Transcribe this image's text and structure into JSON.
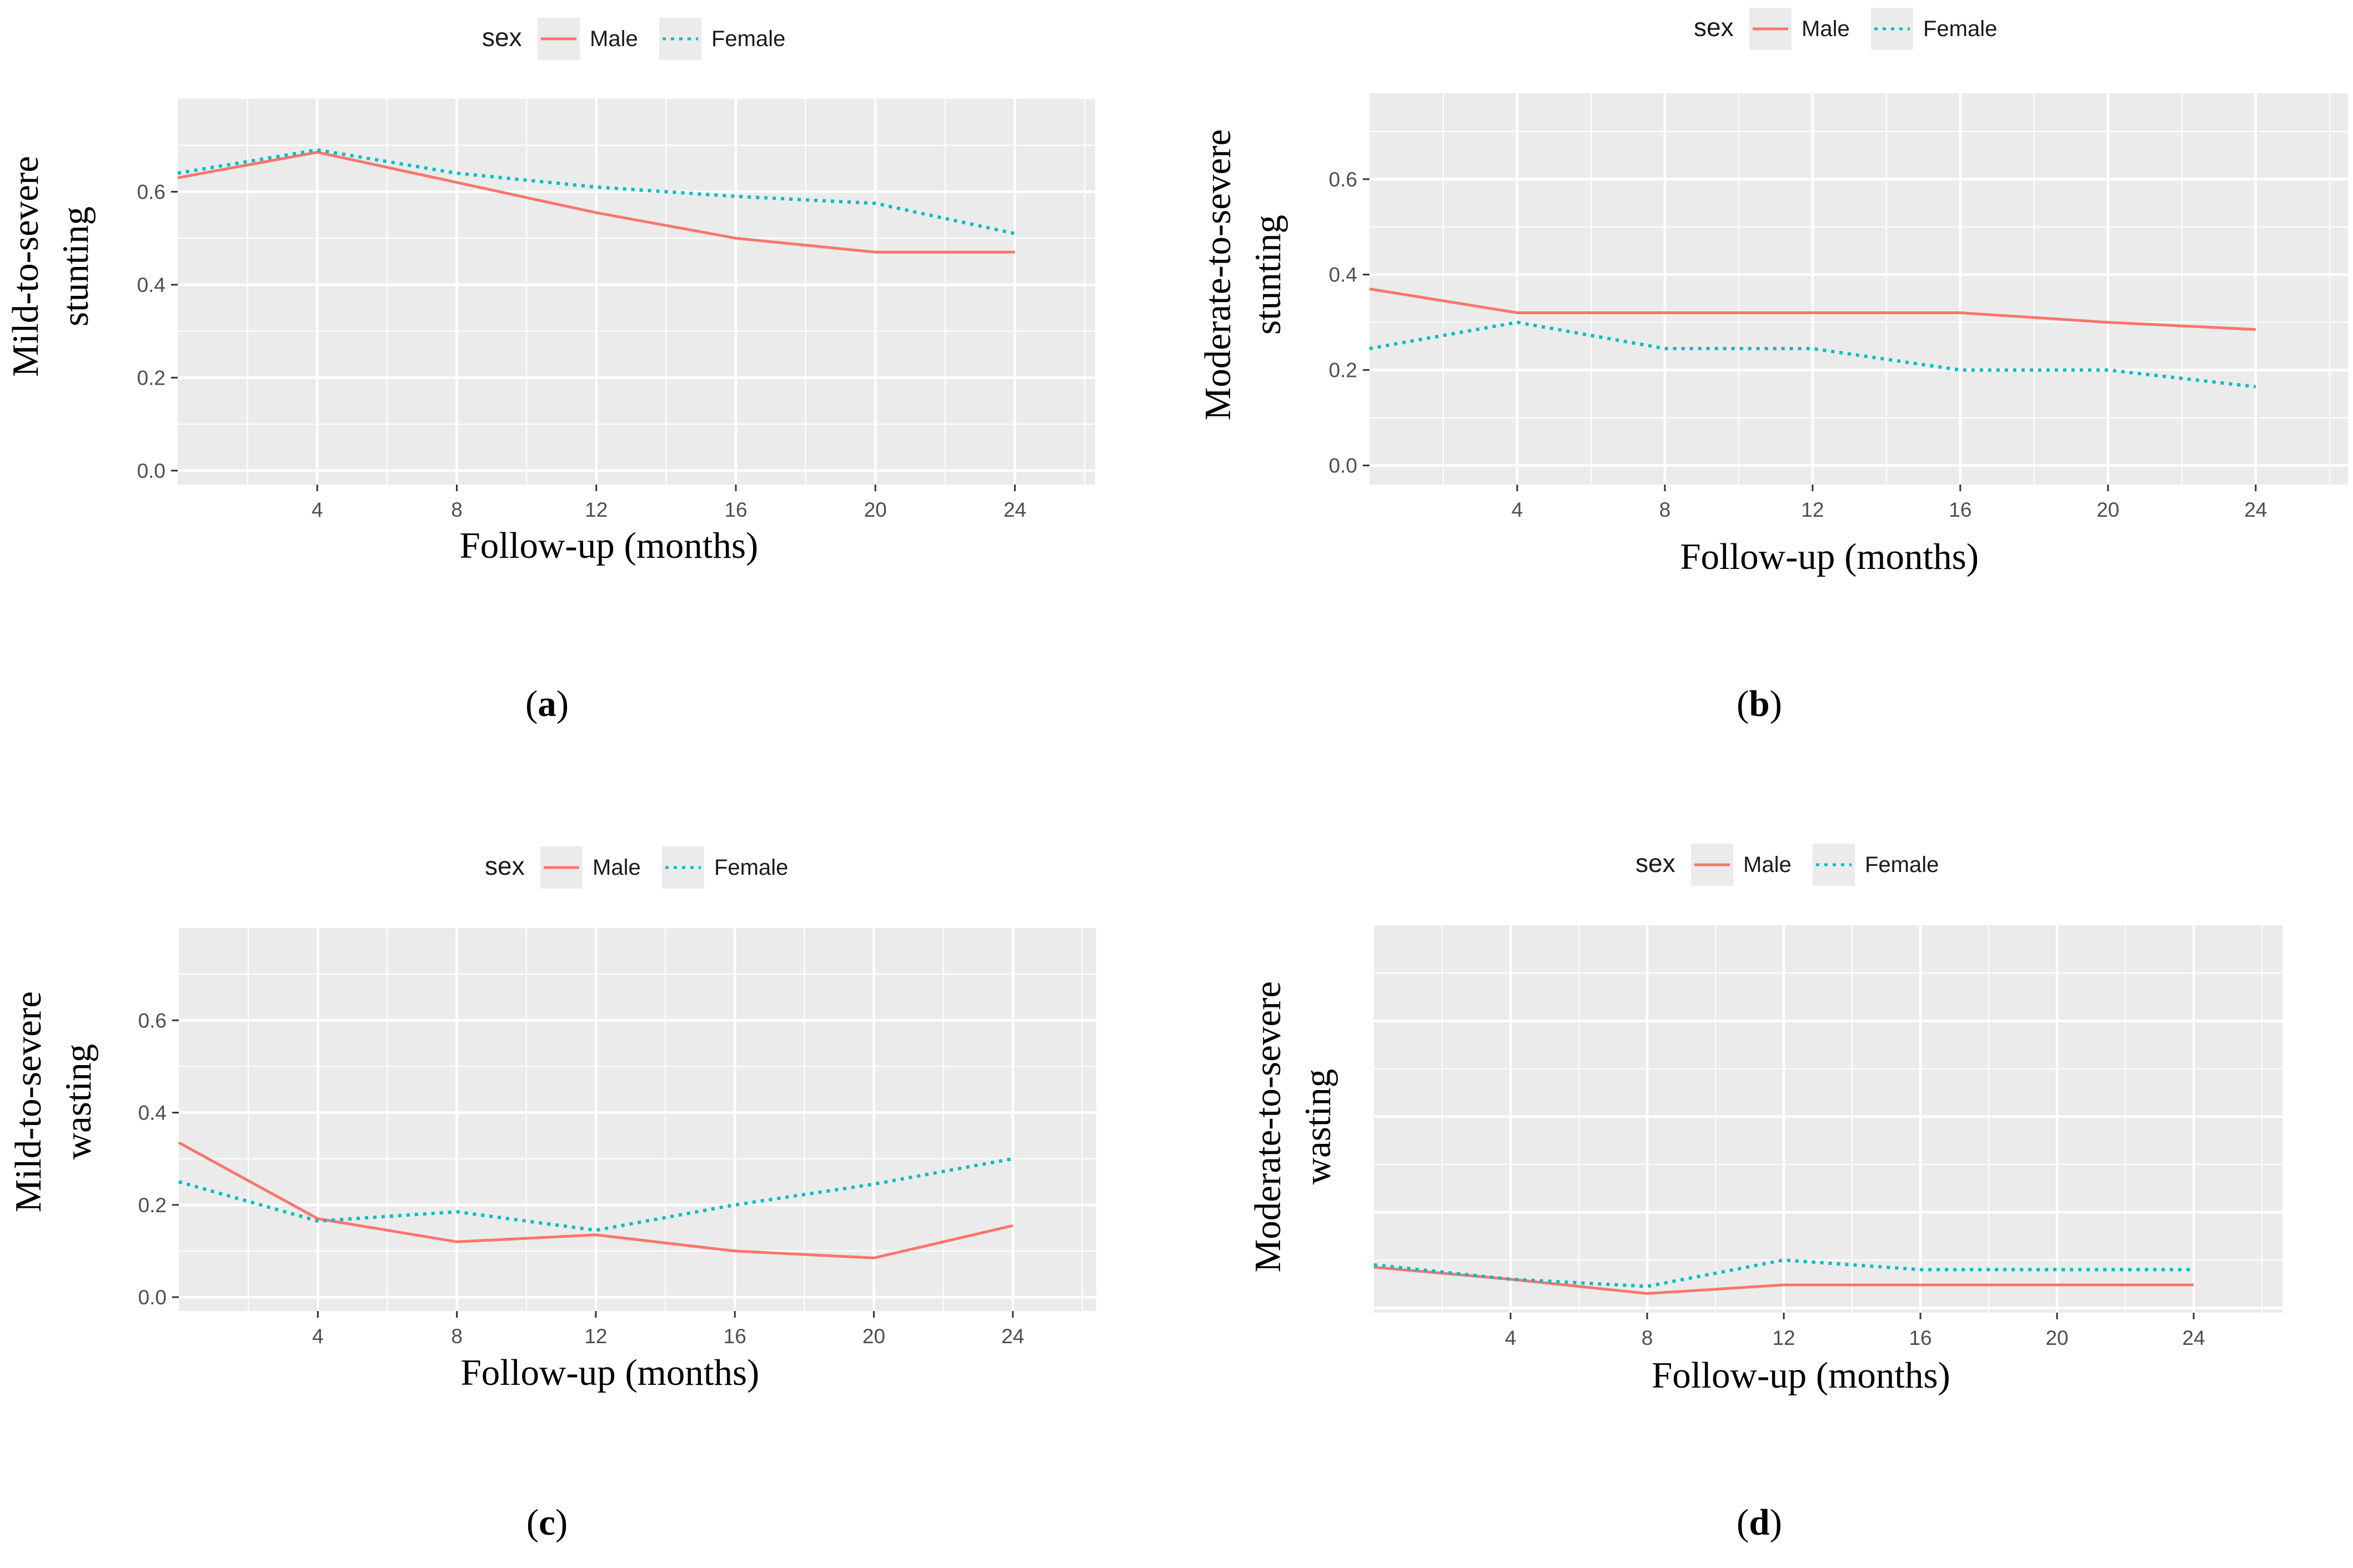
{
  "colors": {
    "male": "#F8766D",
    "female": "#00BFC4",
    "panel_bg": "#EBEBEB",
    "grid": "#FFFFFF"
  },
  "chart_data": [
    {
      "type": "line",
      "panel_label": "a",
      "xlabel": "Follow-up (months)",
      "ylabel": [
        "Mild-to-severe",
        "stunting"
      ],
      "legend": {
        "title": "sex",
        "entries": [
          "Male",
          "Female"
        ],
        "position": "top"
      },
      "xlim": [
        0,
        26.3
      ],
      "ylim": [
        -0.03,
        0.8
      ],
      "xticks": [
        4,
        8,
        12,
        16,
        20,
        24
      ],
      "yticks": [
        0.0,
        0.2,
        0.4,
        0.6
      ],
      "ytick_labels": [
        "0.0",
        "0.2",
        "0.4",
        "0.6"
      ],
      "x": [
        0,
        4,
        8,
        12,
        16,
        20,
        24
      ],
      "series": [
        {
          "name": "Male",
          "values": [
            0.63,
            0.685,
            0.62,
            0.555,
            0.5,
            0.47,
            0.47
          ]
        },
        {
          "name": "Female",
          "values": [
            0.64,
            0.69,
            0.64,
            0.61,
            0.59,
            0.575,
            0.51
          ]
        }
      ]
    },
    {
      "type": "line",
      "panel_label": "b",
      "xlabel": "Follow-up (months)",
      "ylabel": [
        "Moderate-to-severe",
        "stunting"
      ],
      "legend": {
        "title": "sex",
        "entries": [
          "Male",
          "Female"
        ],
        "position": "top"
      },
      "xlim": [
        0,
        26.5
      ],
      "ylim": [
        -0.04,
        0.78
      ],
      "xticks": [
        4,
        8,
        12,
        16,
        20,
        24
      ],
      "yticks": [
        0.0,
        0.2,
        0.4,
        0.6
      ],
      "ytick_labels": [
        "0.0",
        "0.2",
        "0.4",
        "0.6"
      ],
      "x": [
        0,
        4,
        8,
        12,
        16,
        20,
        24
      ],
      "series": [
        {
          "name": "Male",
          "values": [
            0.37,
            0.32,
            0.32,
            0.32,
            0.32,
            0.3,
            0.285
          ]
        },
        {
          "name": "Female",
          "values": [
            0.245,
            0.3,
            0.245,
            0.245,
            0.2,
            0.2,
            0.165
          ]
        }
      ]
    },
    {
      "type": "line",
      "panel_label": "c",
      "xlabel": "Follow-up (months)",
      "ylabel": [
        "Mild-to-severe",
        "wasting"
      ],
      "legend": {
        "title": "sex",
        "entries": [
          "Male",
          "Female"
        ],
        "position": "top"
      },
      "xlim": [
        0,
        26.4
      ],
      "ylim": [
        -0.03,
        0.8
      ],
      "xticks": [
        4,
        8,
        12,
        16,
        20,
        24
      ],
      "yticks": [
        0.0,
        0.2,
        0.4,
        0.6
      ],
      "ytick_labels": [
        "0.0",
        "0.2",
        "0.4",
        "0.6"
      ],
      "x": [
        0,
        4,
        8,
        12,
        16,
        20,
        24
      ],
      "series": [
        {
          "name": "Male",
          "values": [
            0.335,
            0.17,
            0.12,
            0.135,
            0.1,
            0.085,
            0.155
          ]
        },
        {
          "name": "Female",
          "values": [
            0.25,
            0.165,
            0.185,
            0.145,
            0.2,
            0.245,
            0.3
          ]
        }
      ]
    },
    {
      "type": "line",
      "panel_label": "d",
      "xlabel": "Follow-up (months)",
      "ylabel": [
        "Moderate-to-severe",
        "wasting"
      ],
      "legend": {
        "title": "sex",
        "entries": [
          "Male",
          "Female"
        ],
        "position": "top"
      },
      "xlim": [
        0,
        26.6
      ],
      "ylim": [
        -0.01,
        0.8
      ],
      "xticks": [
        4,
        8,
        12,
        16,
        20,
        24
      ],
      "yticks": [],
      "ytick_labels": [],
      "x": [
        0,
        4,
        8,
        12,
        16,
        20,
        24
      ],
      "series": [
        {
          "name": "Male",
          "values": [
            0.085,
            0.06,
            0.03,
            0.048,
            0.048,
            0.048,
            0.048
          ]
        },
        {
          "name": "Female",
          "values": [
            0.09,
            0.06,
            0.045,
            0.1,
            0.08,
            0.08,
            0.08
          ]
        }
      ]
    }
  ]
}
